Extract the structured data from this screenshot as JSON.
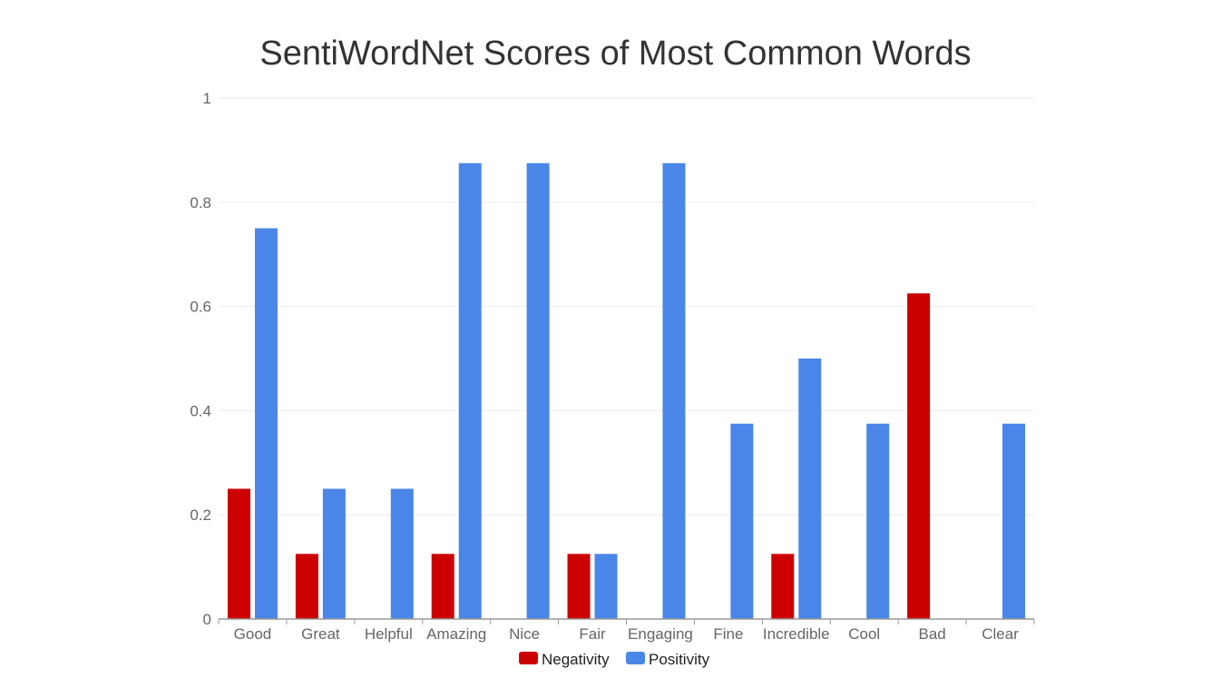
{
  "chart_data": {
    "type": "bar",
    "title": "SentiWordNet Scores of Most Common Words",
    "xlabel": "",
    "ylabel": "",
    "ylim": [
      0,
      1
    ],
    "yticks": [
      "0",
      "0.2",
      "0.4",
      "0.6",
      "0.8",
      "1"
    ],
    "grid": true,
    "legend_position": "bottom",
    "categories": [
      "Good",
      "Great",
      "Helpful",
      "Amazing",
      "Nice",
      "Fair",
      "Engaging",
      "Fine",
      "Incredible",
      "Cool",
      "Bad",
      "Clear"
    ],
    "series": [
      {
        "name": "Negativity",
        "color": "#cc0000",
        "values": [
          0.25,
          0.125,
          0,
          0.125,
          0,
          0.125,
          0,
          0,
          0.125,
          0,
          0.625,
          0
        ]
      },
      {
        "name": "Positivity",
        "color": "#4a86e8",
        "values": [
          0.75,
          0.25,
          0.25,
          0.875,
          0.875,
          0.125,
          0.875,
          0.375,
          0.5,
          0.375,
          0,
          0.375
        ]
      }
    ]
  }
}
